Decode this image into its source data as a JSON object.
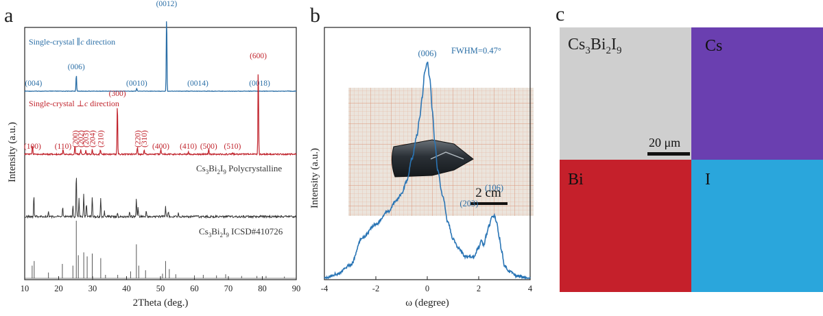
{
  "panels": {
    "a": "a",
    "b": "b",
    "c": "c"
  },
  "chart_data": [
    {
      "type": "line",
      "title": "a",
      "xlabel": "2Theta (deg.)",
      "ylabel": "Intensity (a.u.)",
      "xlim": [
        10,
        90
      ],
      "x_ticks": [
        "10",
        "20",
        "30",
        "40",
        "50",
        "60",
        "70",
        "80",
        "90"
      ],
      "series": [
        {
          "name": "Single-crystal ∥c direction",
          "label": "Single-crystal ∥",
          "label_em": "c",
          "label_tail": " direction",
          "color": "#2a6ea6",
          "peaks": [
            {
              "hkl": "(004)",
              "x": 12.6,
              "h": 0.0
            },
            {
              "hkl": "(006)",
              "x": 25.2,
              "h": 0.22
            },
            {
              "hkl": "(0010)",
              "x": 43.0,
              "h": 0.04
            },
            {
              "hkl": "(0012)",
              "x": 51.8,
              "h": 1.0
            },
            {
              "hkl": "(0014)",
              "x": 61.0,
              "h": 0.0
            },
            {
              "hkl": "(0018)",
              "x": 79.2,
              "h": 0.0
            }
          ]
        },
        {
          "name": "Single-crystal ⊥c direction",
          "label": "Single-crystal ⊥",
          "label_em": "c",
          "label_tail": " direction",
          "color": "#c0222b",
          "peaks": [
            {
              "hkl": "(100)",
              "x": 12.3,
              "h": 0.1
            },
            {
              "hkl": "(110)",
              "x": 21.3,
              "h": 0.06
            },
            {
              "hkl": "(200)",
              "x": 24.8,
              "h": 0.1
            },
            {
              "hkl": "(202)",
              "x": 26.5,
              "h": 0.05
            },
            {
              "hkl": "(203)",
              "x": 28.0,
              "h": 0.05
            },
            {
              "hkl": "(204)",
              "x": 29.9,
              "h": 0.05
            },
            {
              "hkl": "(210)",
              "x": 32.3,
              "h": 0.05
            },
            {
              "hkl": "(300)",
              "x": 37.3,
              "h": 0.59
            },
            {
              "hkl": "(220)",
              "x": 43.2,
              "h": 0.08
            },
            {
              "hkl": "(310)",
              "x": 45.2,
              "h": 0.05
            },
            {
              "hkl": "(400)",
              "x": 50.1,
              "h": 0.06
            },
            {
              "hkl": "(410)",
              "x": 58.2,
              "h": 0.03
            },
            {
              "hkl": "(500)",
              "x": 64.2,
              "h": 0.06
            },
            {
              "hkl": "(510)",
              "x": 71.2,
              "h": 0.02
            },
            {
              "hkl": "(600)",
              "x": 78.8,
              "h": 1.0
            }
          ]
        },
        {
          "name": "Cs3Bi2I9 Polycrystalline",
          "formula_parts": [
            "Cs",
            "3",
            "Bi",
            "2",
            "I",
            "9"
          ],
          "label_tail": " Polycrystalline",
          "color": "#333333",
          "peaks": [
            {
              "x": 12.7,
              "h": 0.5
            },
            {
              "x": 17.0,
              "h": 0.12
            },
            {
              "x": 21.2,
              "h": 0.22
            },
            {
              "x": 24.2,
              "h": 0.25
            },
            {
              "x": 25.2,
              "h": 1.0
            },
            {
              "x": 26.0,
              "h": 0.4
            },
            {
              "x": 27.4,
              "h": 0.5
            },
            {
              "x": 28.2,
              "h": 0.3
            },
            {
              "x": 29.9,
              "h": 0.45
            },
            {
              "x": 32.4,
              "h": 0.4
            },
            {
              "x": 33.5,
              "h": 0.12
            },
            {
              "x": 37.3,
              "h": 0.08
            },
            {
              "x": 40.9,
              "h": 0.12
            },
            {
              "x": 42.9,
              "h": 0.4
            },
            {
              "x": 43.4,
              "h": 0.22
            },
            {
              "x": 45.8,
              "h": 0.12
            },
            {
              "x": 51.5,
              "h": 0.25
            },
            {
              "x": 52.3,
              "h": 0.12
            },
            {
              "x": 55.3,
              "h": 0.08
            }
          ]
        },
        {
          "name": "Cs3Bi2I9 ICSD#410726",
          "formula_parts": [
            "Cs",
            "3",
            "Bi",
            "2",
            "I",
            "9"
          ],
          "label_tail": " ICSD#410726",
          "color": "#555555",
          "peaks": [
            {
              "x": 12.2,
              "h": 0.22
            },
            {
              "x": 12.8,
              "h": 0.3
            },
            {
              "x": 17.0,
              "h": 0.1
            },
            {
              "x": 21.1,
              "h": 0.25
            },
            {
              "x": 24.2,
              "h": 0.22
            },
            {
              "x": 25.2,
              "h": 1.0
            },
            {
              "x": 25.8,
              "h": 0.4
            },
            {
              "x": 27.4,
              "h": 0.45
            },
            {
              "x": 28.4,
              "h": 0.38
            },
            {
              "x": 29.9,
              "h": 0.43
            },
            {
              "x": 32.4,
              "h": 0.35
            },
            {
              "x": 33.8,
              "h": 0.06
            },
            {
              "x": 37.4,
              "h": 0.06
            },
            {
              "x": 41.2,
              "h": 0.12
            },
            {
              "x": 42.9,
              "h": 0.59
            },
            {
              "x": 43.6,
              "h": 0.22
            },
            {
              "x": 45.6,
              "h": 0.14
            },
            {
              "x": 50.6,
              "h": 0.08
            },
            {
              "x": 51.5,
              "h": 0.3
            },
            {
              "x": 52.6,
              "h": 0.16
            },
            {
              "x": 54.5,
              "h": 0.07
            },
            {
              "x": 60.0,
              "h": 0.05
            },
            {
              "x": 62.6,
              "h": 0.06
            },
            {
              "x": 66.5,
              "h": 0.05
            },
            {
              "x": 69.2,
              "h": 0.07
            },
            {
              "x": 73.9,
              "h": 0.04
            },
            {
              "x": 78.4,
              "h": 0.04
            },
            {
              "x": 81.1,
              "h": 0.04
            },
            {
              "x": 86.5,
              "h": 0.03
            }
          ]
        }
      ]
    },
    {
      "type": "line",
      "title": "b",
      "xlabel": "ω (degree)",
      "ylabel": "Intensity (a.u.)",
      "xlim": [
        -4,
        4
      ],
      "ylim": [
        0,
        1
      ],
      "x_ticks": [
        "-4",
        "-2",
        "0",
        "2",
        "4"
      ],
      "annotation": "FWHM=0.47°",
      "peak_labels": [
        {
          "text": "(006)",
          "x": 0.0,
          "y": 1.0
        },
        {
          "text": "(203)",
          "x": 2.05,
          "y": 0.3
        },
        {
          "text": "(106)",
          "x": 2.6,
          "y": 0.38
        }
      ],
      "inset": {
        "scale_label": "2 cm"
      },
      "series": [
        {
          "name": "rocking curve",
          "color": "#2a75b5",
          "x": [
            -4.0,
            -3.5,
            -3.0,
            -2.5,
            -2.0,
            -1.5,
            -1.2,
            -1.0,
            -0.8,
            -0.6,
            -0.4,
            -0.3,
            -0.2,
            -0.1,
            0.0,
            0.1,
            0.2,
            0.3,
            0.4,
            0.6,
            0.8,
            1.0,
            1.2,
            1.5,
            1.8,
            2.0,
            2.1,
            2.2,
            2.3,
            2.4,
            2.5,
            2.6,
            2.7,
            2.8,
            2.9,
            3.0,
            3.2,
            3.5,
            4.0
          ],
          "y": [
            0.0,
            0.02,
            0.06,
            0.19,
            0.25,
            0.31,
            0.36,
            0.39,
            0.45,
            0.55,
            0.66,
            0.74,
            0.83,
            0.95,
            1.0,
            0.92,
            0.77,
            0.62,
            0.5,
            0.38,
            0.26,
            0.18,
            0.14,
            0.1,
            0.1,
            0.14,
            0.18,
            0.15,
            0.2,
            0.24,
            0.28,
            0.29,
            0.26,
            0.19,
            0.12,
            0.06,
            0.03,
            0.01,
            0.0
          ]
        }
      ]
    }
  ],
  "eds_maps": {
    "tiles": [
      {
        "label_parts": [
          "Cs",
          "3",
          "Bi",
          "2",
          "I",
          "9"
        ],
        "color": "#cfcfcf",
        "text_color": "#222222"
      },
      {
        "label": "Cs",
        "color": "#6a3fb0",
        "text_color": "#111111"
      },
      {
        "label": "Bi",
        "color": "#c5202b",
        "text_color": "#111111"
      },
      {
        "label": "I",
        "color": "#2aa6dc",
        "text_color": "#111111"
      }
    ],
    "scale_bar": "20 μm"
  }
}
